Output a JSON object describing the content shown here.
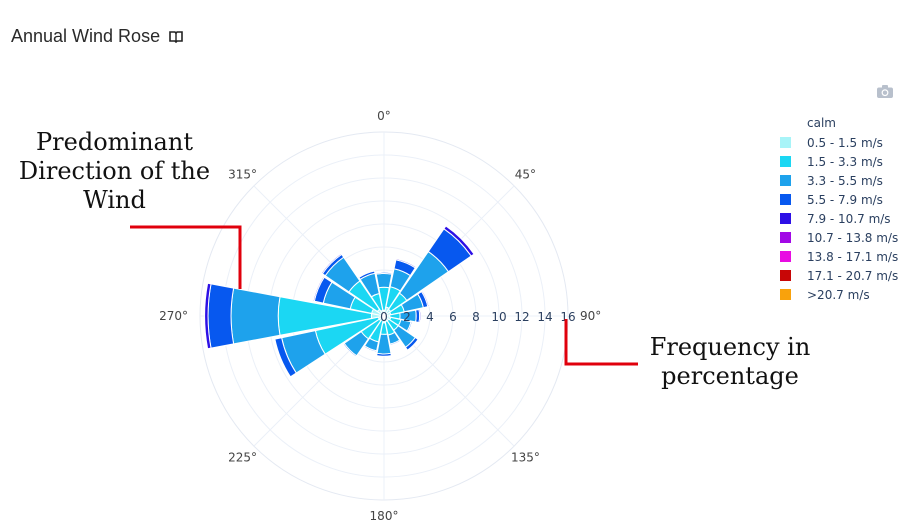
{
  "title": "Annual Wind Rose",
  "icons": {
    "title_icon": "book-icon",
    "toolbar_icon": "camera-icon"
  },
  "annotations": {
    "left": "Predominant Direction of the Wind",
    "right": "Frequency in percentage",
    "line_color": "#e0000c"
  },
  "chart_data": {
    "type": "barpolar",
    "angular_ticks": [
      "0°",
      "45°",
      "90°",
      "135°",
      "180°",
      "225°",
      "270°",
      "315°"
    ],
    "radial_ticks": [
      "0",
      "2",
      "4",
      "6",
      "8",
      "10",
      "12",
      "14",
      "16"
    ],
    "radial_range": [
      0,
      16
    ],
    "legend_title": "calm",
    "legend_placement": "right",
    "series": [
      {
        "name": "0.5 - 1.5 m/s",
        "color": "#a8f4f8"
      },
      {
        "name": "1.5 - 3.3 m/s",
        "color": "#1bd7f3"
      },
      {
        "name": "3.3 - 5.5 m/s",
        "color": "#1ea2ec"
      },
      {
        "name": "5.5 - 7.9 m/s",
        "color": "#0758ef"
      },
      {
        "name": "7.9 - 10.7 m/s",
        "color": "#2d10e6"
      },
      {
        "name": "10.7 - 13.8 m/s",
        "color": "#a208e6"
      },
      {
        "name": "13.8 - 17.1 m/s",
        "color": "#e80ce2"
      },
      {
        "name": "17.1 - 20.7 m/s",
        "color": "#c80606"
      },
      {
        "name": ">20.7 m/s",
        "color": "#f9a20c"
      }
    ],
    "directions": [
      0,
      22.5,
      45,
      67.5,
      90,
      112.5,
      135,
      157.5,
      180,
      202.5,
      225,
      247.5,
      270,
      292.5,
      315,
      337.5
    ],
    "bins": [
      [
        0.5,
        2.5,
        3.7,
        3.8,
        3.8
      ],
      [
        0.8,
        2.6,
        4.2,
        5.0,
        5.1
      ],
      [
        0.7,
        2.4,
        6.8,
        9.2,
        9.5
      ],
      [
        0.6,
        1.8,
        3.5,
        3.9,
        4.0
      ],
      [
        0.5,
        1.4,
        2.8,
        3.1,
        3.2
      ],
      [
        0.6,
        1.5,
        2.4,
        2.5,
        2.5
      ],
      [
        0.5,
        1.5,
        3.3,
        3.6,
        3.6
      ],
      [
        0.5,
        1.7,
        2.5,
        2.6,
        2.6
      ],
      [
        0.6,
        1.6,
        3.3,
        3.5,
        3.5
      ],
      [
        0.4,
        2.3,
        3.1,
        3.2,
        3.2
      ],
      [
        0.5,
        2.4,
        4.2,
        4.3,
        4.3
      ],
      [
        0.5,
        6.1,
        9.1,
        9.7,
        9.7
      ],
      [
        1.1,
        9.2,
        13.3,
        15.3,
        15.6
      ],
      [
        1.1,
        3.0,
        5.4,
        6.2,
        6.3
      ],
      [
        0.7,
        3.7,
        6.2,
        6.5,
        6.6
      ],
      [
        0.5,
        2.0,
        3.8,
        4.0,
        4.0
      ]
    ]
  }
}
